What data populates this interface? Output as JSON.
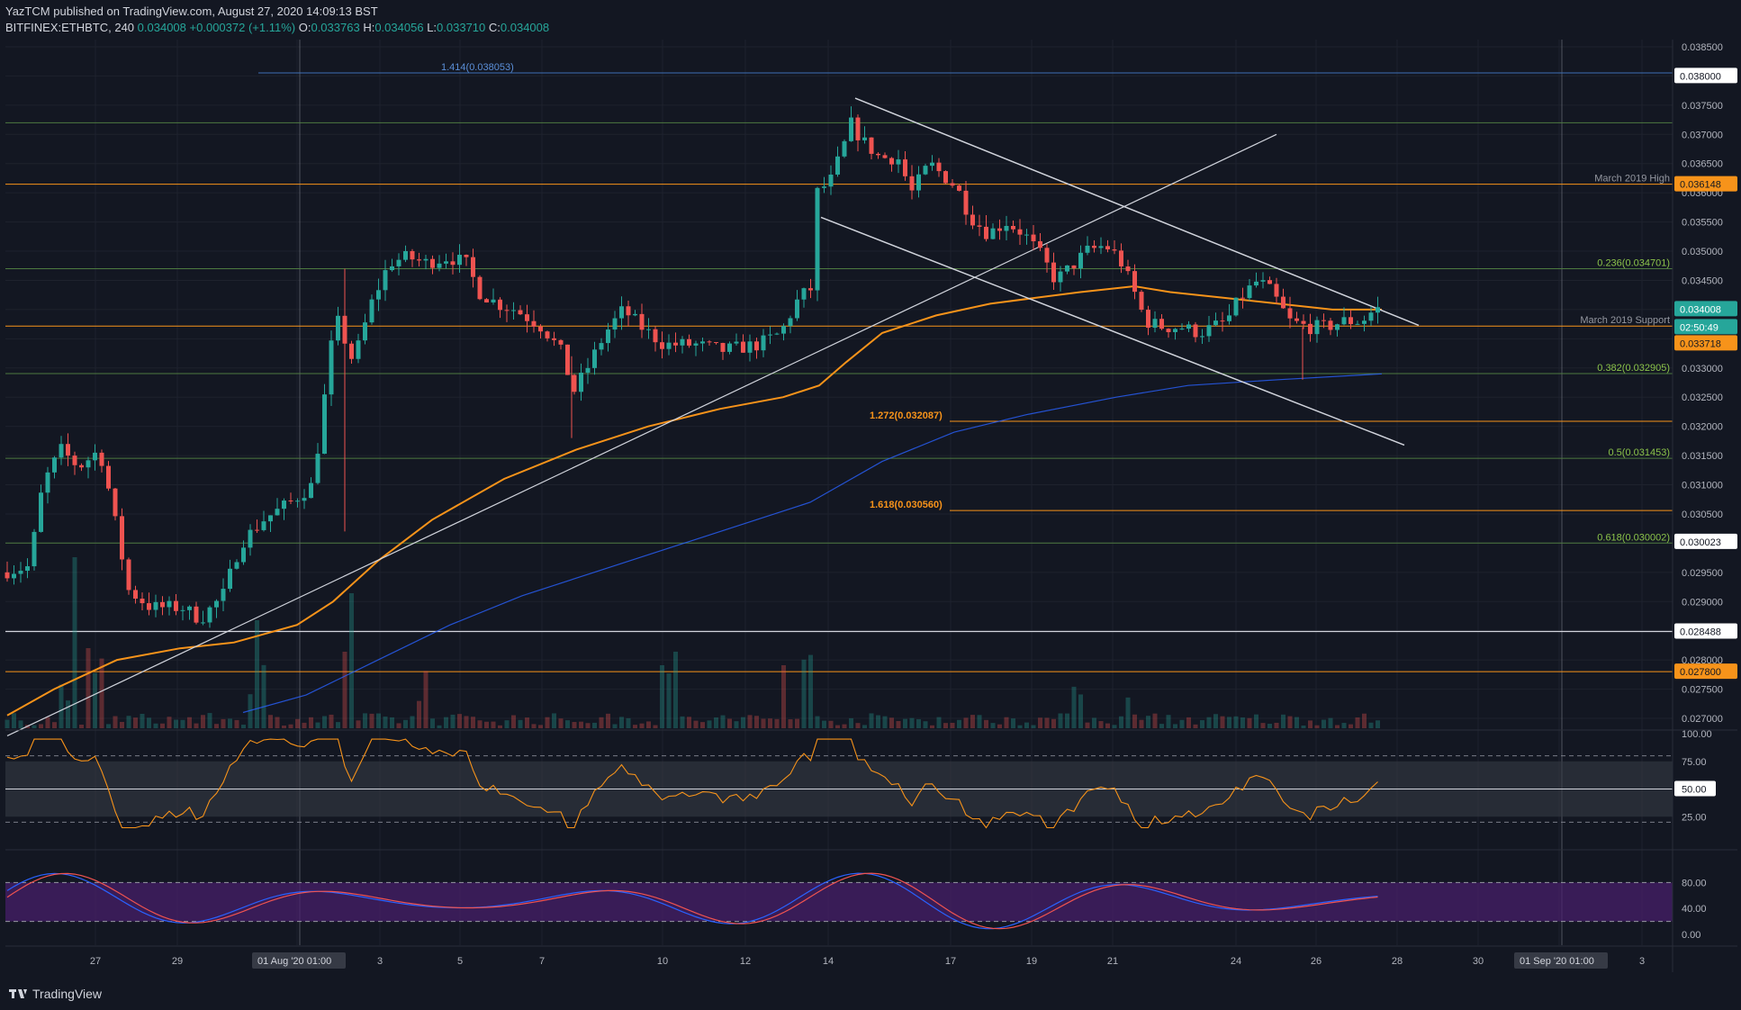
{
  "header": {
    "publisher": "YazTCM",
    "published_line": "published on TradingView.com, August 27, 2020 14:09:13 BST",
    "symbol": "BITFINEX:ETHBTC, 240",
    "last": "0.034008",
    "change": "+0.000372 (+1.11%)",
    "o_label": "O:",
    "o": "0.033763",
    "h_label": "H:",
    "h": "0.034056",
    "l_label": "L:",
    "l": "0.033710",
    "c_label": "C:",
    "c": "0.034008"
  },
  "footer": {
    "brand": "TradingView"
  },
  "colors": {
    "background": "#131722",
    "bull": "#26a69a",
    "bear": "#ef5350",
    "orange": "#f7931a",
    "green_level": "#6aa84f",
    "blue_level": "#3d6fb6"
  },
  "chart_data": {
    "type": "candlestick",
    "price_axis": {
      "ticks": [
        "0.038500",
        "0.038000",
        "0.037500",
        "0.037000",
        "0.036500",
        "0.036000",
        "0.035500",
        "0.035000",
        "0.034500",
        "0.034000",
        "0.033500",
        "0.033000",
        "0.032500",
        "0.032000",
        "0.031500",
        "0.031000",
        "0.030500",
        "0.030000",
        "0.029500",
        "0.029000",
        "0.028500",
        "0.028000",
        "0.027500",
        "0.027000"
      ],
      "range": [
        0.0267,
        0.0388
      ]
    },
    "time_axis": {
      "labels": [
        "27",
        "29",
        "01 Aug '20  01:00",
        "3",
        "5",
        "7",
        "10",
        "12",
        "14",
        "17",
        "19",
        "21",
        "24",
        "26",
        "28",
        "30",
        "01 Sep '20  01:00",
        "3"
      ]
    },
    "price_labels": [
      {
        "value": "0.038000",
        "style": "white"
      },
      {
        "value": "0.036148",
        "style": "orange"
      },
      {
        "value": "0.034008",
        "style": "teal"
      },
      {
        "value": "02:50:49",
        "style": "teal"
      },
      {
        "value": "0.033718",
        "style": "orange"
      },
      {
        "value": "0.030023",
        "style": "white"
      },
      {
        "value": "0.028488",
        "style": "white"
      },
      {
        "value": "0.027800",
        "style": "orange"
      }
    ],
    "horizontal_levels": [
      {
        "price": 0.038053,
        "label": "1.414(0.038053)",
        "color": "blue"
      },
      {
        "price": 0.0372,
        "label": "",
        "color": "green"
      },
      {
        "price": 0.036148,
        "label": "March 2019 High",
        "color": "orange"
      },
      {
        "price": 0.034701,
        "label": "0.236(0.034701)",
        "color": "green"
      },
      {
        "price": 0.033718,
        "label": "March 2019 Support",
        "color": "orange"
      },
      {
        "price": 0.032905,
        "label": "0.382(0.032905)",
        "color": "green"
      },
      {
        "price": 0.032087,
        "label": "1.272(0.032087)",
        "color": "orange"
      },
      {
        "price": 0.031453,
        "label": "0.5(0.031453)",
        "color": "green"
      },
      {
        "price": 0.03056,
        "label": "1.618(0.030560)",
        "color": "orange"
      },
      {
        "price": 0.030002,
        "label": "0.618(0.030002)",
        "color": "green"
      },
      {
        "price": 0.028488,
        "label": "",
        "color": "white"
      },
      {
        "price": 0.0278,
        "label": "",
        "color": "orange"
      }
    ],
    "rsi": {
      "ticks": [
        "100.00",
        "75.00",
        "50.00",
        "25.00"
      ],
      "current": "50.00",
      "band": [
        25,
        75
      ]
    },
    "stoch": {
      "ticks": [
        "80.00",
        "40.00",
        "0.00"
      ],
      "band": [
        20,
        80
      ]
    }
  }
}
